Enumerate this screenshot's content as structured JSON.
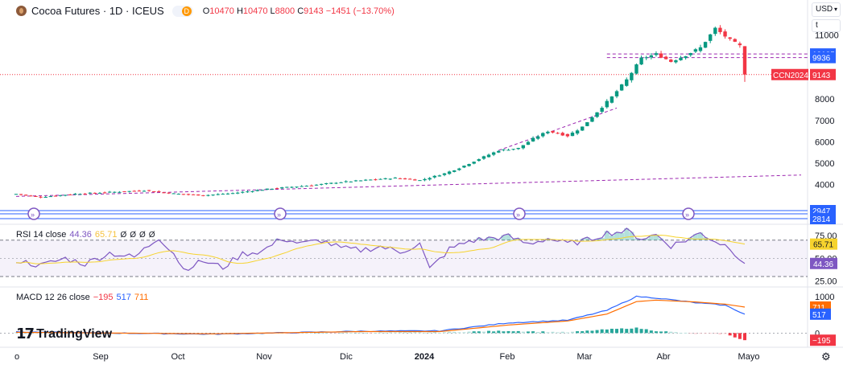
{
  "header": {
    "title": "Cocoa Futures · 1D · ICEUS",
    "badge": "D",
    "ohlc": {
      "o_label": "O",
      "o": "10470",
      "h_label": "H",
      "h": "10470",
      "l_label": "L",
      "l": "8800",
      "c_label": "C",
      "c": "9143",
      "change": "−1451 (−13.70%)"
    }
  },
  "controls": {
    "currency": "USD",
    "unit": "t"
  },
  "logo": {
    "mark": "17",
    "text": "TradingView"
  },
  "icons": {
    "symbol": "cocoa-bean-icon",
    "eye": "eye-icon",
    "gear": "gear-icon"
  },
  "colors": {
    "up": "#089981",
    "down": "#f23645",
    "rsi_line": "#7e57c2",
    "rsi_ma": "#f6d32d",
    "macd_line": "#2962ff",
    "signal_line": "#ff6d00",
    "trend": "#9c27b0"
  },
  "chart_data": [
    {
      "type": "candlestick",
      "title": "Cocoa Futures · 1D · ICEUS",
      "x_ticks": [
        "o",
        "Sep",
        "Oct",
        "Nov",
        "Dic",
        "2024",
        "Feb",
        "Mar",
        "Abr",
        "Mayo"
      ],
      "y_ticks": [
        4000,
        5000,
        6000,
        7000,
        8000
      ],
      "ylim": [
        3050,
        11800
      ],
      "price_labels": [
        {
          "label": "",
          "value": "10105",
          "color": "#2962ff"
        },
        {
          "label": "",
          "value": "9936",
          "color": "#2962ff"
        },
        {
          "label": "CCN2024",
          "value": "9143",
          "color": "#f23645"
        },
        {
          "label": "",
          "value": "2947",
          "color": "#2962ff"
        },
        {
          "label": "",
          "value": "2814",
          "color": "#2962ff"
        }
      ],
      "anchors": [
        [
          0,
          3560
        ],
        [
          5,
          3420
        ],
        [
          12,
          3570
        ],
        [
          20,
          3660
        ],
        [
          26,
          3730
        ],
        [
          32,
          3580
        ],
        [
          38,
          3500
        ],
        [
          44,
          3600
        ],
        [
          52,
          3820
        ],
        [
          60,
          3970
        ],
        [
          66,
          4120
        ],
        [
          72,
          4230
        ],
        [
          77,
          4310
        ],
        [
          82,
          4200
        ],
        [
          87,
          4520
        ],
        [
          90,
          4780
        ],
        [
          94,
          5200
        ],
        [
          98,
          5600
        ],
        [
          102,
          5700
        ],
        [
          105,
          6150
        ],
        [
          108,
          6500
        ],
        [
          112,
          6280
        ],
        [
          115,
          6700
        ],
        [
          118,
          7400
        ],
        [
          121,
          8100
        ],
        [
          124,
          8900
        ],
        [
          127,
          9900
        ],
        [
          130,
          10100
        ],
        [
          133,
          9750
        ],
        [
          136,
          10050
        ],
        [
          139,
          10400
        ],
        [
          142,
          11300
        ],
        [
          145,
          10750
        ],
        [
          147,
          10480
        ],
        [
          148,
          9143
        ]
      ],
      "last": {
        "open": 10470,
        "high": 10470,
        "low": 8800,
        "close": 9143
      }
    },
    {
      "type": "line",
      "name": "RSI",
      "legend": {
        "label": "RSI 14 close",
        "v1": "44.36",
        "v2": "65.71",
        "eye_icons": [
          "Ø",
          "Ø",
          "Ø",
          "Ø"
        ]
      },
      "y_ticks": [
        75.0,
        50.0,
        25.0
      ],
      "ylim": [
        22,
        84
      ],
      "bands": [
        30,
        70
      ],
      "current": {
        "rsi": "44.36",
        "ma": "65.71"
      },
      "anchors": [
        [
          0,
          48
        ],
        [
          5,
          42
        ],
        [
          10,
          50
        ],
        [
          14,
          44
        ],
        [
          19,
          56
        ],
        [
          24,
          51
        ],
        [
          29,
          73
        ],
        [
          32,
          56
        ],
        [
          34,
          38
        ],
        [
          38,
          47
        ],
        [
          42,
          40
        ],
        [
          46,
          55
        ],
        [
          50,
          58
        ],
        [
          54,
          72
        ],
        [
          58,
          66
        ],
        [
          62,
          70
        ],
        [
          66,
          61
        ],
        [
          70,
          59
        ],
        [
          74,
          63
        ],
        [
          78,
          57
        ],
        [
          82,
          66
        ],
        [
          84,
          38
        ],
        [
          88,
          60
        ],
        [
          92,
          69
        ],
        [
          96,
          72
        ],
        [
          100,
          74
        ],
        [
          104,
          66
        ],
        [
          108,
          72
        ],
        [
          112,
          66
        ],
        [
          116,
          70
        ],
        [
          120,
          78
        ],
        [
          124,
          80
        ],
        [
          127,
          72
        ],
        [
          130,
          76
        ],
        [
          133,
          64
        ],
        [
          136,
          70
        ],
        [
          139,
          78
        ],
        [
          142,
          69
        ],
        [
          145,
          62
        ],
        [
          148,
          44
        ]
      ]
    },
    {
      "type": "line",
      "name": "MACD",
      "legend": {
        "label": "MACD 12 26 close",
        "hist": "−195",
        "macd": "517",
        "signal": "711"
      },
      "y_ticks": [
        1000,
        0
      ],
      "ylim": [
        -300,
        1150
      ],
      "current": {
        "macd": "517",
        "signal": "711",
        "hist": "−195"
      },
      "macd_anchors": [
        [
          0,
          30
        ],
        [
          40,
          -30
        ],
        [
          70,
          50
        ],
        [
          86,
          60
        ],
        [
          100,
          280
        ],
        [
          112,
          350
        ],
        [
          120,
          620
        ],
        [
          126,
          1000
        ],
        [
          130,
          960
        ],
        [
          138,
          830
        ],
        [
          144,
          760
        ],
        [
          148,
          517
        ]
      ],
      "signal_anchors": [
        [
          0,
          20
        ],
        [
          40,
          -20
        ],
        [
          70,
          40
        ],
        [
          86,
          40
        ],
        [
          100,
          220
        ],
        [
          112,
          330
        ],
        [
          120,
          520
        ],
        [
          126,
          860
        ],
        [
          130,
          900
        ],
        [
          138,
          850
        ],
        [
          144,
          790
        ],
        [
          148,
          711
        ]
      ]
    }
  ]
}
